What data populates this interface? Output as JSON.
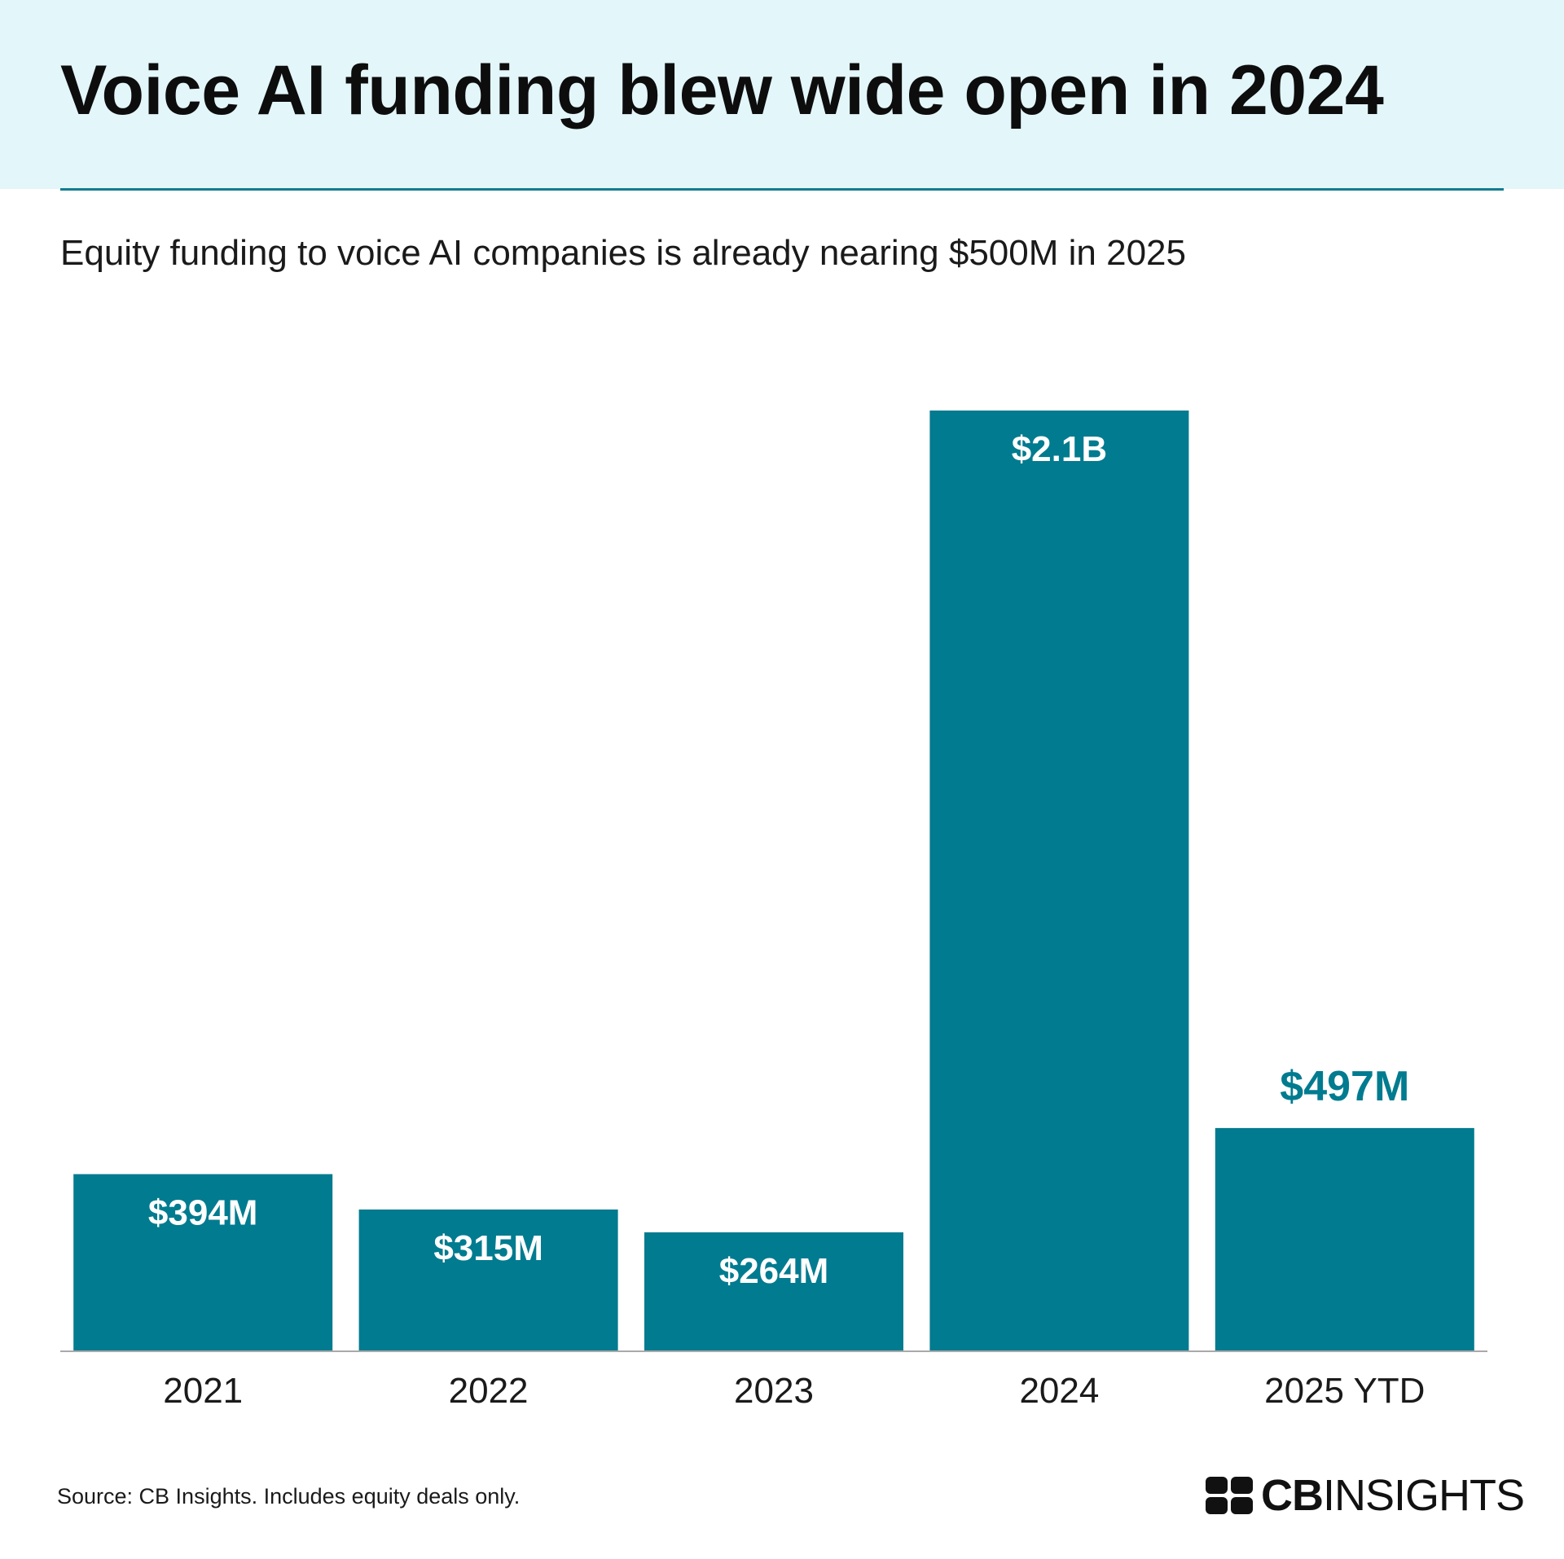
{
  "header": {
    "title": "Voice AI funding blew wide open in 2024",
    "subtitle": "Equity funding to voice AI companies is already nearing $500M in 2025"
  },
  "chart_data": {
    "type": "bar",
    "title": "Voice AI funding blew wide open in 2024",
    "subtitle": "Equity funding to voice AI companies is already nearing $500M in 2025",
    "xlabel": "",
    "ylabel": "",
    "categories": [
      "2021",
      "2022",
      "2023",
      "2024",
      "2025 YTD"
    ],
    "values": [
      394,
      315,
      264,
      2100,
      497
    ],
    "unit": "$M",
    "data_labels": [
      "$394M",
      "$315M",
      "$264M",
      "$2.1B",
      "$497M"
    ],
    "label_positions": [
      "inside",
      "inside",
      "inside",
      "inside",
      "above"
    ],
    "ylim": [
      0,
      2100
    ],
    "grid": false,
    "y_axis_visible": false,
    "legend": "none",
    "bar_color": "#017b8f",
    "inside_label_color": "#ffffff",
    "above_label_color": "#017b8f"
  },
  "footer": {
    "source": "Source: CB Insights. Includes equity deals only.",
    "logo_text_bold": "CB",
    "logo_text_regular": "INSIGHTS"
  },
  "colors": {
    "header_background": "#e3f6fa",
    "rule": "#137c8f",
    "bar": "#017b8f",
    "axis_line": "#a9a9a9"
  },
  "icons": {
    "logo": "cb-insights-logo"
  }
}
